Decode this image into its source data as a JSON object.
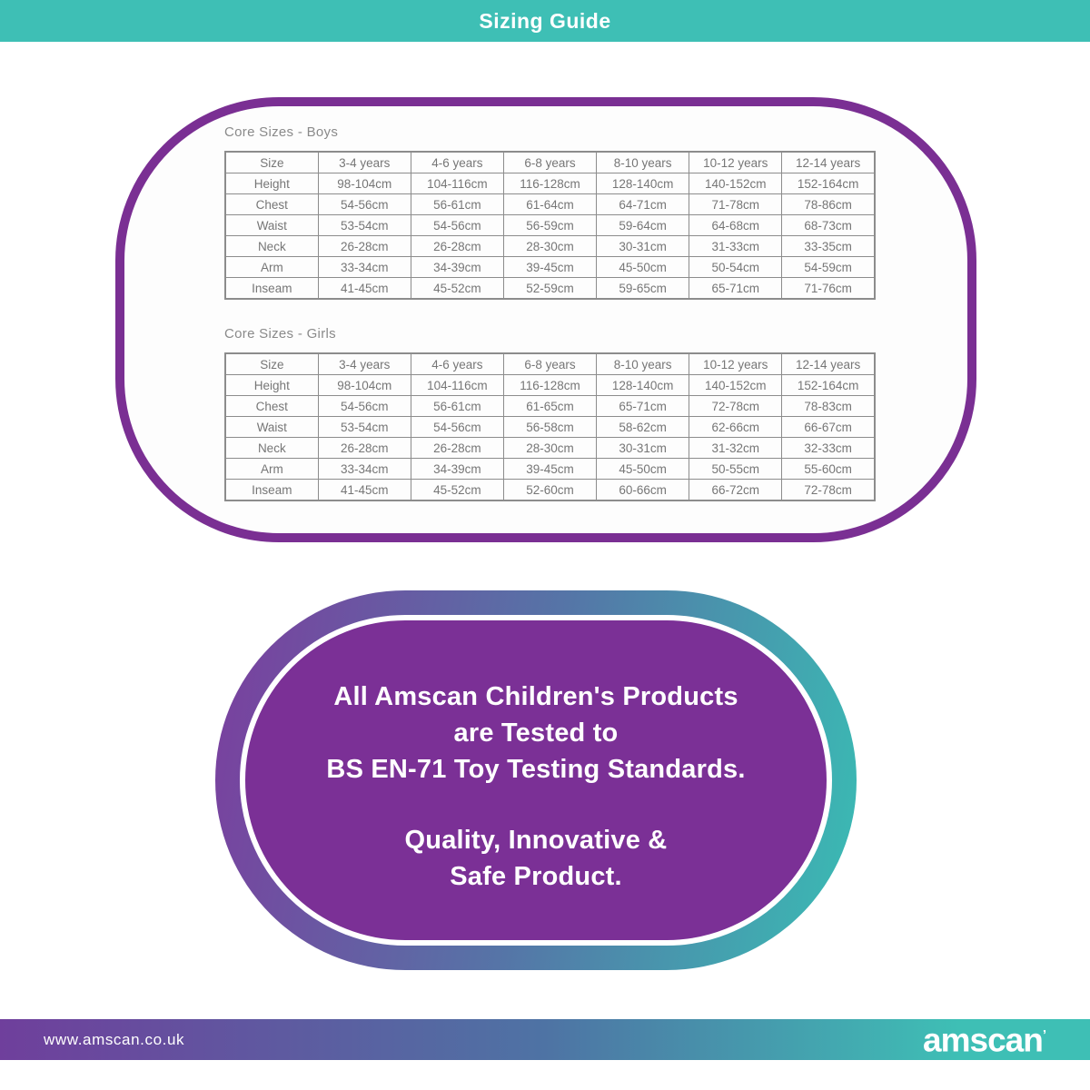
{
  "header": {
    "title": "Sizing Guide"
  },
  "tables": [
    {
      "title": "Core Sizes - Boys",
      "columns": [
        "Size",
        "3-4 years",
        "4-6 years",
        "6-8 years",
        "8-10 years",
        "10-12 years",
        "12-14 years"
      ],
      "rows": [
        {
          "label": "Height",
          "values": [
            "98-104cm",
            "104-116cm",
            "116-128cm",
            "128-140cm",
            "140-152cm",
            "152-164cm"
          ]
        },
        {
          "label": "Chest",
          "values": [
            "54-56cm",
            "56-61cm",
            "61-64cm",
            "64-71cm",
            "71-78cm",
            "78-86cm"
          ]
        },
        {
          "label": "Waist",
          "values": [
            "53-54cm",
            "54-56cm",
            "56-59cm",
            "59-64cm",
            "64-68cm",
            "68-73cm"
          ]
        },
        {
          "label": "Neck",
          "values": [
            "26-28cm",
            "26-28cm",
            "28-30cm",
            "30-31cm",
            "31-33cm",
            "33-35cm"
          ]
        },
        {
          "label": "Arm",
          "values": [
            "33-34cm",
            "34-39cm",
            "39-45cm",
            "45-50cm",
            "50-54cm",
            "54-59cm"
          ]
        },
        {
          "label": "Inseam",
          "values": [
            "41-45cm",
            "45-52cm",
            "52-59cm",
            "59-65cm",
            "65-71cm",
            "71-76cm"
          ]
        }
      ]
    },
    {
      "title": "Core Sizes - Girls",
      "columns": [
        "Size",
        "3-4 years",
        "4-6 years",
        "6-8 years",
        "8-10 years",
        "10-12 years",
        "12-14 years"
      ],
      "rows": [
        {
          "label": "Height",
          "values": [
            "98-104cm",
            "104-116cm",
            "116-128cm",
            "128-140cm",
            "140-152cm",
            "152-164cm"
          ]
        },
        {
          "label": "Chest",
          "values": [
            "54-56cm",
            "56-61cm",
            "61-65cm",
            "65-71cm",
            "72-78cm",
            "78-83cm"
          ]
        },
        {
          "label": "Waist",
          "values": [
            "53-54cm",
            "54-56cm",
            "56-58cm",
            "58-62cm",
            "62-66cm",
            "66-67cm"
          ]
        },
        {
          "label": "Neck",
          "values": [
            "26-28cm",
            "26-28cm",
            "28-30cm",
            "30-31cm",
            "31-32cm",
            "32-33cm"
          ]
        },
        {
          "label": "Arm",
          "values": [
            "33-34cm",
            "34-39cm",
            "39-45cm",
            "45-50cm",
            "50-55cm",
            "55-60cm"
          ]
        },
        {
          "label": "Inseam",
          "values": [
            "41-45cm",
            "45-52cm",
            "52-60cm",
            "60-66cm",
            "66-72cm",
            "72-78cm"
          ]
        }
      ]
    }
  ],
  "badge": {
    "paragraph1": [
      "All Amscan Children's Products",
      "are Tested to",
      "BS EN-71 Toy Testing Standards."
    ],
    "paragraph2": [
      "Quality, Innovative &",
      "Safe Product."
    ]
  },
  "footer": {
    "url": "www.amscan.co.uk",
    "brand": "amscan",
    "brand_mark": "’"
  },
  "colors": {
    "teal": "#3EBFB5",
    "panel_border_purple": "#7A2F93",
    "badge_purple": "#7B3096",
    "badge_gradient_start": "#7B3E9E",
    "badge_gradient_mid": "#5575A7",
    "badge_gradient_end": "#39BDB4",
    "footer_gradient_start": "#6F3F9C",
    "footer_gradient_mid": "#4E73A4",
    "footer_gradient_end": "#3EBFB5",
    "table_text": "#767676",
    "table_border": "#8c8c8c",
    "text_white": "#ffffff"
  }
}
